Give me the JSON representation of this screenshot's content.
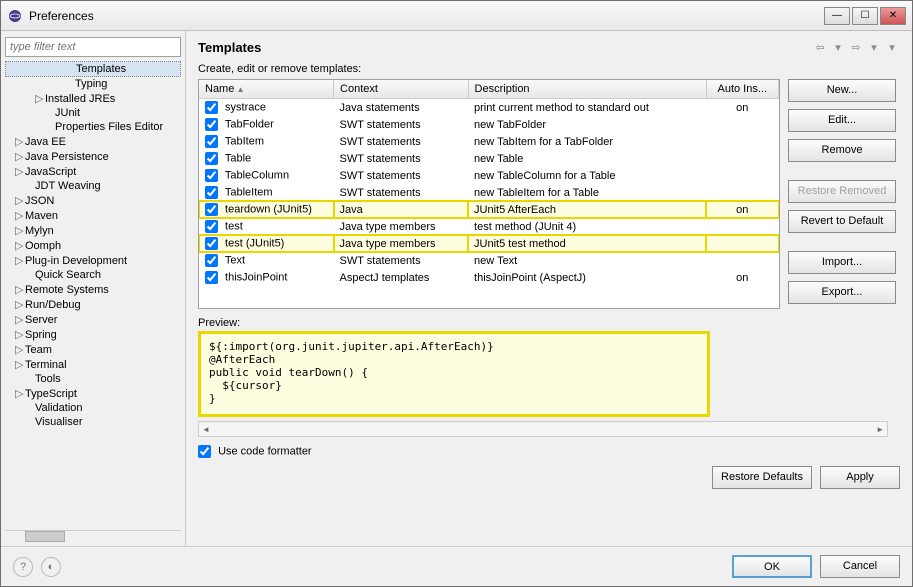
{
  "window": {
    "title": "Preferences"
  },
  "sidebar": {
    "filter_placeholder": "type filter text",
    "items": [
      {
        "label": "Templates",
        "indent": 60,
        "sel": true
      },
      {
        "label": "Typing",
        "indent": 60
      },
      {
        "label": "Installed JREs",
        "arrow": "▷",
        "indent": 30
      },
      {
        "label": "JUnit",
        "indent": 40
      },
      {
        "label": "Properties Files Editor",
        "indent": 40
      },
      {
        "label": "Java EE",
        "arrow": "▷",
        "indent": 10
      },
      {
        "label": "Java Persistence",
        "arrow": "▷",
        "indent": 10
      },
      {
        "label": "JavaScript",
        "arrow": "▷",
        "indent": 10
      },
      {
        "label": "JDT Weaving",
        "indent": 20
      },
      {
        "label": "JSON",
        "arrow": "▷",
        "indent": 10
      },
      {
        "label": "Maven",
        "arrow": "▷",
        "indent": 10
      },
      {
        "label": "Mylyn",
        "arrow": "▷",
        "indent": 10
      },
      {
        "label": "Oomph",
        "arrow": "▷",
        "indent": 10
      },
      {
        "label": "Plug-in Development",
        "arrow": "▷",
        "indent": 10
      },
      {
        "label": "Quick Search",
        "indent": 20
      },
      {
        "label": "Remote Systems",
        "arrow": "▷",
        "indent": 10
      },
      {
        "label": "Run/Debug",
        "arrow": "▷",
        "indent": 10
      },
      {
        "label": "Server",
        "arrow": "▷",
        "indent": 10
      },
      {
        "label": "Spring",
        "arrow": "▷",
        "indent": 10
      },
      {
        "label": "Team",
        "arrow": "▷",
        "indent": 10
      },
      {
        "label": "Terminal",
        "arrow": "▷",
        "indent": 10
      },
      {
        "label": "Tools",
        "indent": 20
      },
      {
        "label": "TypeScript",
        "arrow": "▷",
        "indent": 10
      },
      {
        "label": "Validation",
        "indent": 20
      },
      {
        "label": "Visualiser",
        "indent": 20
      }
    ]
  },
  "main": {
    "title": "Templates",
    "subtitle": "Create, edit or remove templates:",
    "columns": {
      "name": "Name",
      "context": "Context",
      "desc": "Description",
      "auto": "Auto Ins..."
    },
    "rows": [
      {
        "name": "systrace",
        "ctx": "Java statements",
        "desc": "print current method to standard out",
        "auto": "on",
        "chk": true
      },
      {
        "name": "TabFolder",
        "ctx": "SWT statements",
        "desc": "new TabFolder",
        "auto": "",
        "chk": true
      },
      {
        "name": "TabItem",
        "ctx": "SWT statements",
        "desc": "new TabItem for a TabFolder",
        "auto": "",
        "chk": true
      },
      {
        "name": "Table",
        "ctx": "SWT statements",
        "desc": "new Table",
        "auto": "",
        "chk": true
      },
      {
        "name": "TableColumn",
        "ctx": "SWT statements",
        "desc": "new TableColumn for a Table",
        "auto": "",
        "chk": true
      },
      {
        "name": "TableItem",
        "ctx": "SWT statements",
        "desc": "new TableItem for a Table",
        "auto": "",
        "chk": true
      },
      {
        "name": "teardown (JUnit5)",
        "ctx": "Java",
        "desc": "JUnit5 AfterEach",
        "auto": "on",
        "chk": true,
        "hl": true
      },
      {
        "name": "test",
        "ctx": "Java type members",
        "desc": "test method (JUnit 4)",
        "auto": "",
        "chk": true
      },
      {
        "name": "test (JUnit5)",
        "ctx": "Java type members",
        "desc": "JUnit5 test method",
        "auto": "",
        "chk": true,
        "hl": true
      },
      {
        "name": "Text",
        "ctx": "SWT statements",
        "desc": "new Text",
        "auto": "",
        "chk": true
      },
      {
        "name": "thisJoinPoint",
        "ctx": "AspectJ templates",
        "desc": "thisJoinPoint (AspectJ)",
        "auto": "on",
        "chk": true
      }
    ],
    "buttons": {
      "new": "New...",
      "edit": "Edit...",
      "remove": "Remove",
      "restore_removed": "Restore Removed",
      "revert": "Revert to Default",
      "import": "Import...",
      "export": "Export..."
    },
    "preview_label": "Preview:",
    "preview": "${:import(org.junit.jupiter.api.AfterEach)}\n@AfterEach\npublic void tearDown() {\n  ${cursor}\n}",
    "use_formatter": "Use code formatter",
    "restore_defaults": "Restore Defaults",
    "apply": "Apply"
  },
  "footer": {
    "ok": "OK",
    "cancel": "Cancel"
  }
}
